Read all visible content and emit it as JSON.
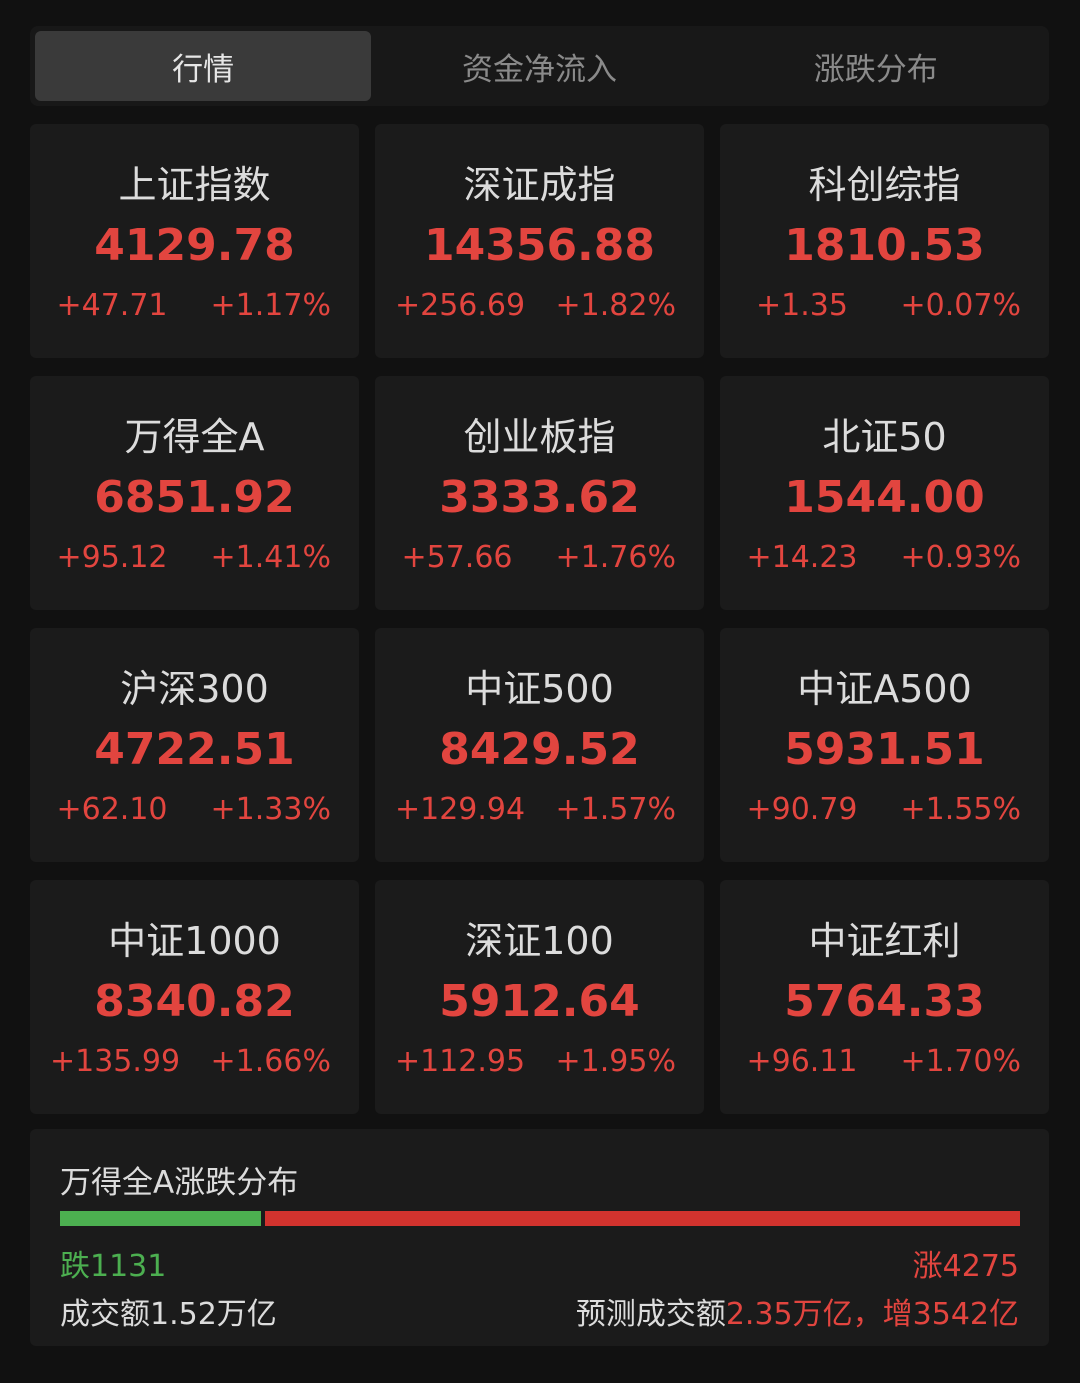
{
  "tabs": [
    {
      "label": "行情",
      "active": true
    },
    {
      "label": "资金净流入",
      "active": false
    },
    {
      "label": "涨跌分布",
      "active": false
    }
  ],
  "indices": [
    {
      "name": "上证指数",
      "value": "4129.78",
      "change": "+47.71",
      "pct": "+1.17%"
    },
    {
      "name": "深证成指",
      "value": "14356.88",
      "change": "+256.69",
      "pct": "+1.82%"
    },
    {
      "name": "科创综指",
      "value": "1810.53",
      "change": "+1.35",
      "pct": "+0.07%"
    },
    {
      "name": "万得全A",
      "value": "6851.92",
      "change": "+95.12",
      "pct": "+1.41%"
    },
    {
      "name": "创业板指",
      "value": "3333.62",
      "change": "+57.66",
      "pct": "+1.76%"
    },
    {
      "name": "北证50",
      "value": "1544.00",
      "change": "+14.23",
      "pct": "+0.93%"
    },
    {
      "name": "沪深300",
      "value": "4722.51",
      "change": "+62.10",
      "pct": "+1.33%"
    },
    {
      "name": "中证500",
      "value": "8429.52",
      "change": "+129.94",
      "pct": "+1.57%"
    },
    {
      "name": "中证A500",
      "value": "5931.51",
      "change": "+90.79",
      "pct": "+1.55%"
    },
    {
      "name": "中证1000",
      "value": "8340.82",
      "change": "+135.99",
      "pct": "+1.66%"
    },
    {
      "name": "深证100",
      "value": "5912.64",
      "change": "+112.95",
      "pct": "+1.95%"
    },
    {
      "name": "中证红利",
      "value": "5764.33",
      "change": "+96.11",
      "pct": "+1.70%"
    }
  ],
  "distribution": {
    "title": "万得全A涨跌分布",
    "down_label": "跌1131",
    "up_label": "涨4275",
    "down_count": 1131,
    "up_count": 4275,
    "volume": "成交额1.52万亿",
    "predicted_prefix": "预测成交额",
    "predicted_value": "2.35万亿，增3542亿"
  },
  "colors": {
    "up": "#e2453f",
    "down": "#4caf50",
    "background": "#111111",
    "card": "#1b1b1b"
  }
}
